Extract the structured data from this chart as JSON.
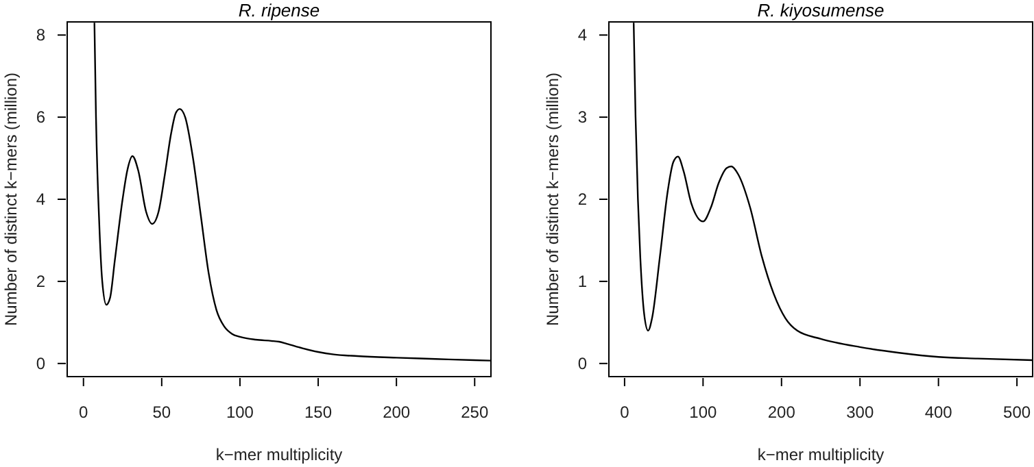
{
  "chart_data": [
    {
      "type": "line",
      "title": "R. ripense",
      "xlabel": "k−mer multiplicity",
      "ylabel": "Number of distinct k−mers (million)",
      "xlim": [
        -10.4,
        260.4
      ],
      "ylim": [
        -0.32,
        8.32
      ],
      "xticks": [
        0,
        50,
        100,
        150,
        200,
        250
      ],
      "yticks": [
        0,
        2,
        4,
        6,
        8
      ],
      "grid": false,
      "series": [
        {
          "color": "#000000",
          "x": [
            7,
            8,
            10,
            12,
            14.6,
            17,
            20,
            25,
            28,
            31.3,
            35,
            40,
            43.9,
            48,
            52,
            56,
            59,
            61.5,
            65,
            70,
            75,
            80,
            85,
            90,
            95,
            100,
            110,
            120,
            125,
            130,
            140,
            150,
            160,
            175,
            200,
            225,
            250,
            260
          ],
          "values": [
            8.3,
            6,
            3.5,
            2.0,
            1.43,
            1.6,
            2.5,
            4.0,
            4.7,
            5.05,
            4.7,
            3.7,
            3.4,
            3.7,
            4.6,
            5.6,
            6.1,
            6.2,
            6.0,
            5.0,
            3.6,
            2.2,
            1.3,
            0.9,
            0.72,
            0.65,
            0.58,
            0.55,
            0.53,
            0.48,
            0.37,
            0.28,
            0.22,
            0.18,
            0.14,
            0.11,
            0.08,
            0.07
          ]
        }
      ]
    },
    {
      "type": "line",
      "title": "R. kiyosumense",
      "xlabel": "k−mer multiplicity",
      "ylabel": "Number of distinct k−mers (million)",
      "xlim": [
        -20,
        520
      ],
      "ylim": [
        -0.16,
        4.16
      ],
      "xticks": [
        0,
        100,
        200,
        300,
        400,
        500
      ],
      "yticks": [
        0,
        1,
        2,
        3,
        4
      ],
      "grid": false,
      "series": [
        {
          "color": "#000000",
          "x": [
            11.6,
            14,
            17,
            20,
            25,
            30,
            35,
            45,
            55,
            62,
            68,
            75,
            85,
            100,
            110,
            120,
            130,
            136,
            145,
            160,
            175,
            190,
            205,
            220,
            250,
            300,
            350,
            400,
            450,
            520
          ],
          "values": [
            4.15,
            3,
            2.0,
            1.3,
            0.6,
            0.4,
            0.55,
            1.3,
            2.1,
            2.45,
            2.52,
            2.35,
            1.95,
            1.73,
            1.9,
            2.2,
            2.38,
            2.4,
            2.3,
            1.9,
            1.3,
            0.85,
            0.55,
            0.4,
            0.3,
            0.2,
            0.13,
            0.08,
            0.06,
            0.04
          ]
        }
      ]
    }
  ]
}
